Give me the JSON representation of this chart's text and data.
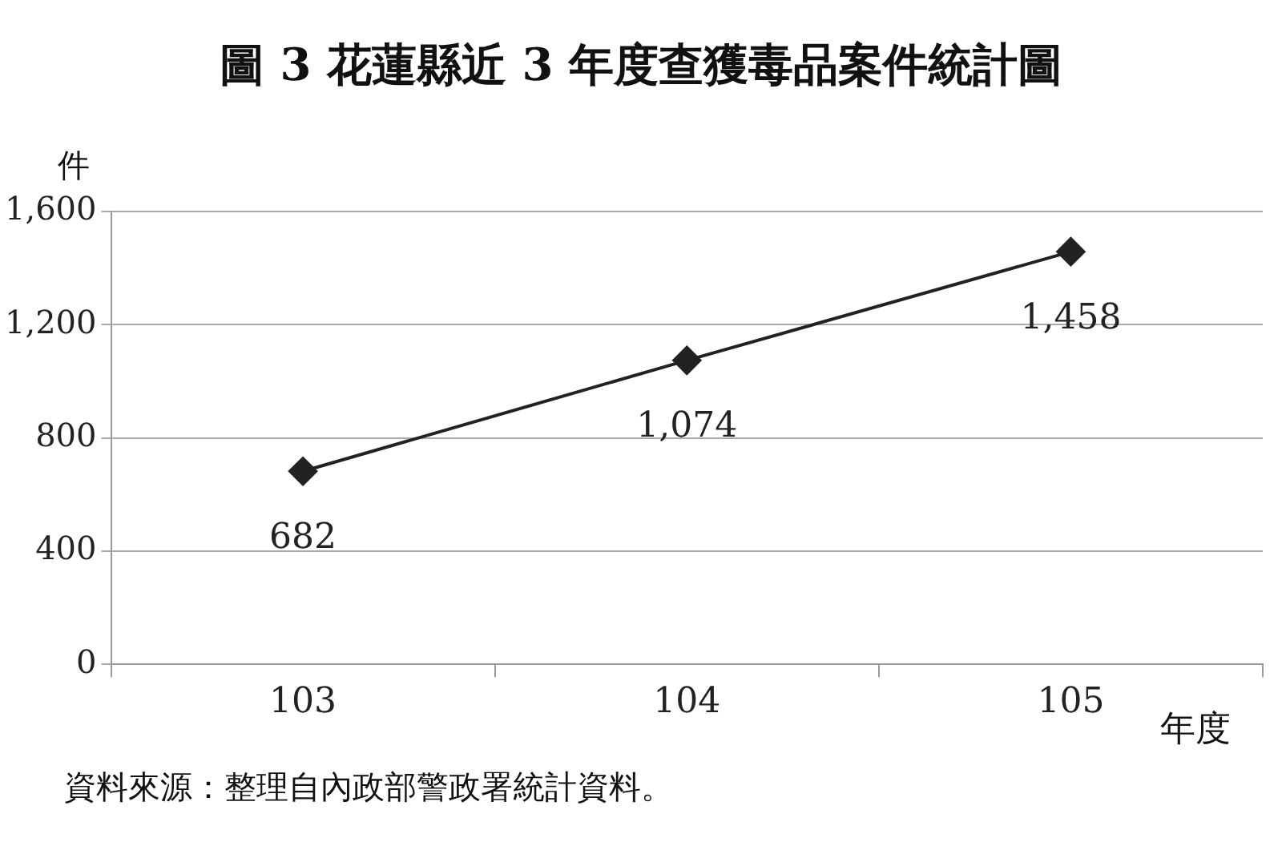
{
  "chart_data": {
    "type": "line",
    "title": "圖 3 花蓮縣近 3 年度查獲毒品案件統計圖",
    "ylabel": "件",
    "xlabel": "年度",
    "annotations": [
      "資料來源：整理自內政部警政署統計資料。"
    ],
    "categories": [
      "103",
      "104",
      "105"
    ],
    "series": [
      {
        "color": "#222222",
        "values": [
          682,
          1074,
          1458
        ],
        "value_labels": [
          "682",
          "1,074",
          "1,458"
        ]
      }
    ],
    "ylim": [
      0,
      1600
    ],
    "yticks": [
      0,
      {
        "value": 400,
        "label": "400"
      },
      {
        "value": 800,
        "label": "800"
      },
      {
        "value": 1200,
        "label": "1,200"
      },
      {
        "value": 1600,
        "label": "1,600"
      }
    ],
    "grid": "y",
    "legend": false,
    "marker": "diamond",
    "line_style": "solid"
  }
}
